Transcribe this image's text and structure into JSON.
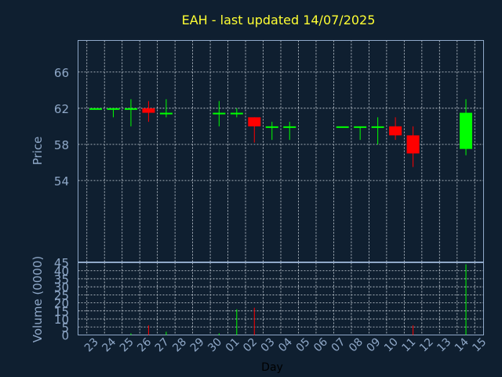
{
  "chart_data": {
    "type": "candlestick",
    "title": "EAH - last updated 14/07/2025",
    "xlabel": "Day",
    "ylabel_price": "Price",
    "ylabel_volume": "Volume (0000)",
    "x_ticks": [
      "23",
      "24",
      "25",
      "26",
      "27",
      "28",
      "29",
      "30",
      "01",
      "02",
      "03",
      "04",
      "05",
      "06",
      "07",
      "08",
      "09",
      "10",
      "11",
      "12",
      "13",
      "14",
      "15"
    ],
    "price_ticks": [
      "54",
      "58",
      "62",
      "66"
    ],
    "price_ylim": [
      45,
      69.5
    ],
    "volume_ticks": [
      "0",
      "5",
      "10",
      "15",
      "20",
      "25",
      "30",
      "35",
      "40",
      "45"
    ],
    "volume_ylim": [
      0,
      45
    ],
    "grid": true,
    "up_color": "#00ff00",
    "down_color": "#ff0000",
    "frame_color": "#8fa8c8",
    "candles": [
      {
        "day": "23",
        "open": 62.0,
        "high": 62.0,
        "low": 62.0,
        "close": 62.0,
        "volume": 0
      },
      {
        "day": "24",
        "open": 62.0,
        "high": 62.0,
        "low": 61.0,
        "close": 62.0,
        "volume": 0
      },
      {
        "day": "25",
        "open": 62.0,
        "high": 63.0,
        "low": 60.0,
        "close": 62.0,
        "volume": 1
      },
      {
        "day": "26",
        "open": 62.0,
        "high": 62.8,
        "low": 60.5,
        "close": 61.5,
        "volume": 6
      },
      {
        "day": "27",
        "open": 61.5,
        "high": 63.0,
        "low": 61.0,
        "close": 61.5,
        "volume": 2
      },
      {
        "day": "30",
        "open": 61.5,
        "high": 62.8,
        "low": 60.0,
        "close": 61.5,
        "volume": 1
      },
      {
        "day": "01",
        "open": 61.5,
        "high": 62.0,
        "low": 61.0,
        "close": 61.5,
        "volume": 16
      },
      {
        "day": "02",
        "open": 61.0,
        "high": 61.0,
        "low": 58.2,
        "close": 60.0,
        "volume": 17
      },
      {
        "day": "03",
        "open": 60.0,
        "high": 60.5,
        "low": 58.5,
        "close": 60.0,
        "volume": 0
      },
      {
        "day": "04",
        "open": 60.0,
        "high": 60.5,
        "low": 58.5,
        "close": 60.0,
        "volume": 0
      },
      {
        "day": "07",
        "open": 60.0,
        "high": 60.0,
        "low": 60.0,
        "close": 60.0,
        "volume": 0
      },
      {
        "day": "08",
        "open": 60.0,
        "high": 60.0,
        "low": 58.5,
        "close": 60.0,
        "volume": 0
      },
      {
        "day": "09",
        "open": 60.0,
        "high": 61.0,
        "low": 58.0,
        "close": 60.0,
        "volume": 0
      },
      {
        "day": "10",
        "open": 60.0,
        "high": 61.0,
        "low": 58.5,
        "close": 59.0,
        "volume": 0
      },
      {
        "day": "11",
        "open": 59.0,
        "high": 60.0,
        "low": 55.5,
        "close": 57.0,
        "volume": 6
      },
      {
        "day": "14",
        "open": 57.5,
        "high": 63.0,
        "low": 56.8,
        "close": 61.5,
        "volume": 44
      }
    ]
  }
}
